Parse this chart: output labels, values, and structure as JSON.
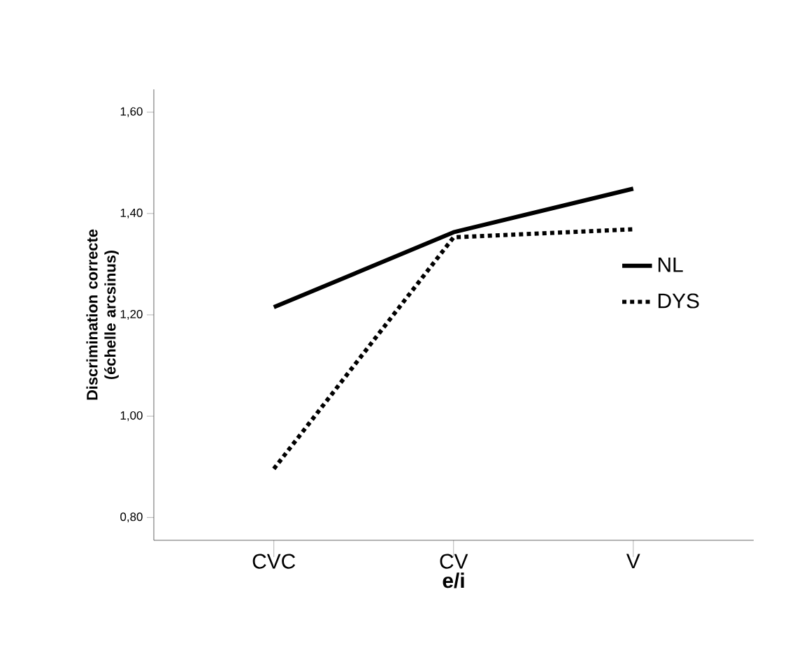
{
  "chart_data": {
    "type": "line",
    "xlabel": "e/i",
    "ylabel": "Discrimination correcte (échelle arcsinus)",
    "categories": [
      "CVC",
      "CV",
      "V"
    ],
    "series": [
      {
        "name": "NL",
        "color": "#000000",
        "line_style": "solid",
        "values": [
          1.215,
          1.363,
          1.449
        ]
      },
      {
        "name": "DYS",
        "color": "#000000",
        "line_style": "dotted",
        "values": [
          0.896,
          1.353,
          1.369
        ]
      }
    ],
    "ylim": [
      0.755,
      1.645
    ],
    "yticks": [
      {
        "value": 0.8,
        "label": "0,80"
      },
      {
        "value": 1.0,
        "label": "1,00"
      },
      {
        "value": 1.2,
        "label": "1,20"
      },
      {
        "value": 1.4,
        "label": "1,40"
      },
      {
        "value": 1.6,
        "label": "1,60"
      }
    ],
    "legend": "right",
    "grid": false,
    "marker": "none"
  }
}
